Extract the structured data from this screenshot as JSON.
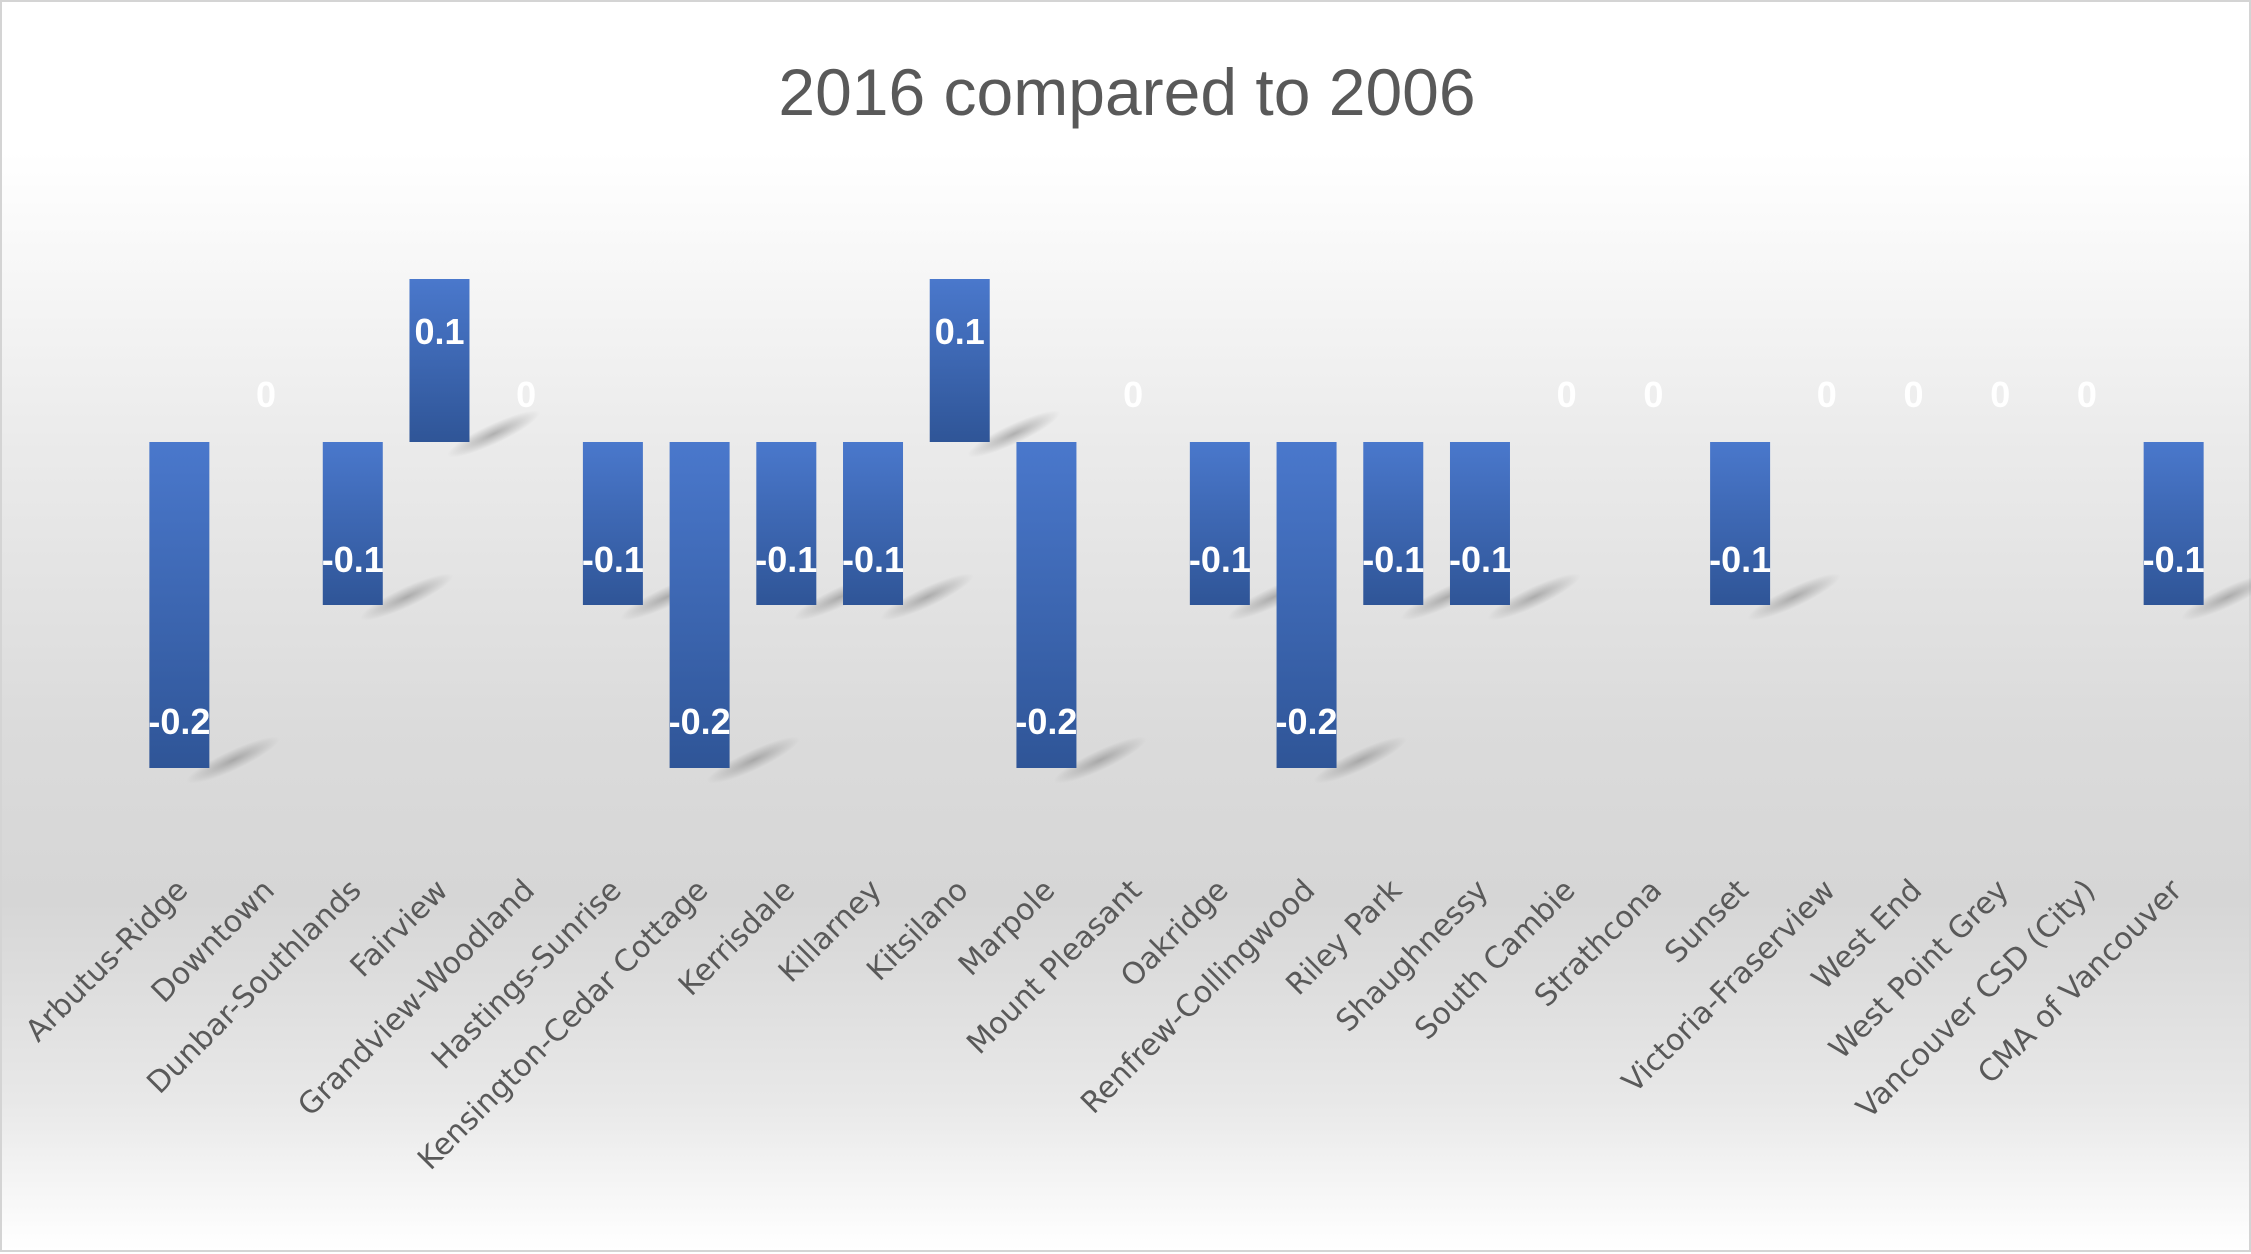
{
  "chart_data": {
    "type": "bar",
    "title": "2016 compared to 2006",
    "xlabel": "",
    "ylabel": "",
    "ylim": [
      -0.2,
      0.1
    ],
    "grid": false,
    "legend": "none",
    "categories": [
      "Arbutus-Ridge",
      "Downtown",
      "Dunbar-Southlands",
      "Fairview",
      "Grandview-Woodland",
      "Hastings-Sunrise",
      "Kensington-Cedar Cottage",
      "Kerrisdale",
      "Killarney",
      "Kitsilano",
      "Marpole",
      "Mount Pleasant",
      "Oakridge",
      "Renfrew-Collingwood",
      "Riley Park",
      "Shaughnessy",
      "South Cambie",
      "Strathcona",
      "Sunset",
      "Victoria-Fraserview",
      "West End",
      "West Point Grey",
      "Vancouver CSD (City)",
      "CMA of Vancouver"
    ],
    "values": [
      -0.2,
      0,
      -0.1,
      0.1,
      0,
      -0.1,
      -0.2,
      -0.1,
      -0.1,
      0.1,
      -0.2,
      0,
      -0.1,
      -0.2,
      -0.1,
      -0.1,
      0,
      0,
      -0.1,
      0,
      0,
      0,
      0,
      -0.1
    ],
    "data_labels": [
      "-0.2",
      "0",
      "-0.1",
      "0.1",
      "0",
      "-0.1",
      "-0.2",
      "-0.1",
      "-0.1",
      "0.1",
      "-0.2",
      "0",
      "-0.1",
      "-0.2",
      "-0.1",
      "-0.1",
      "0",
      "0",
      "-0.1",
      "0",
      "0",
      "0",
      "0",
      "-0.1"
    ],
    "colors": {
      "bar": "#4472c4",
      "bar_dark": "#2f5597",
      "data_label": "#ffffff",
      "axis_text": "#595959"
    }
  }
}
